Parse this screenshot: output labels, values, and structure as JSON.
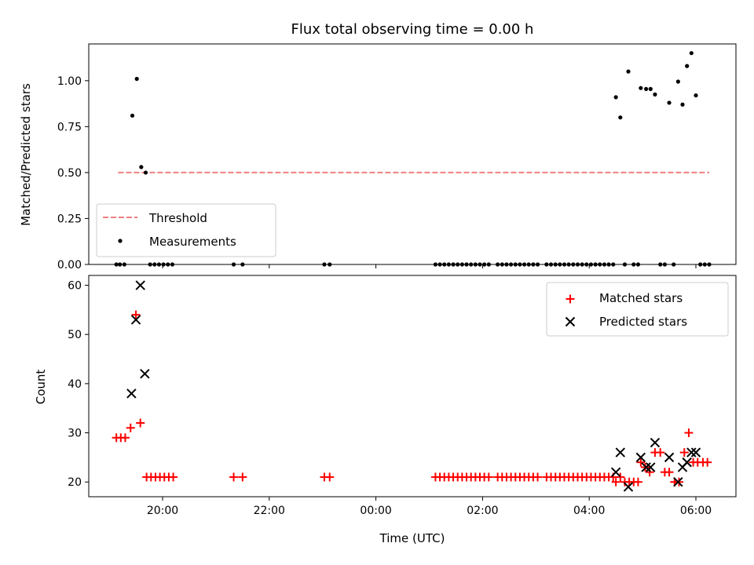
{
  "figure": {
    "title": "Flux total observing time = 0.00 h",
    "xlabel": "Time (UTC)",
    "x_ticks": [
      "20:00",
      "22:00",
      "00:00",
      "02:00",
      "04:00",
      "06:00"
    ]
  },
  "chart_data": [
    {
      "type": "scatter",
      "ylabel": "Matched/Predicted stars",
      "ylim": [
        0,
        1.2
      ],
      "y_ticks": [
        "0.00",
        "0.25",
        "0.50",
        "0.75",
        "1.00"
      ],
      "legend_position": "lower-left",
      "threshold": {
        "name": "Threshold",
        "value": 0.5,
        "x_start": "19:10",
        "x_end": "06:15",
        "color": "#f08080"
      },
      "measurements_name": "Measurements",
      "measurements": [
        {
          "x": "19:08",
          "y": 0
        },
        {
          "x": "19:12",
          "y": 0
        },
        {
          "x": "19:17",
          "y": 0
        },
        {
          "x": "19:26",
          "y": 0.81
        },
        {
          "x": "19:31",
          "y": 1.01
        },
        {
          "x": "19:36",
          "y": 0.53
        },
        {
          "x": "19:41",
          "y": 0.5
        },
        {
          "x": "19:46",
          "y": 0
        },
        {
          "x": "19:51",
          "y": 0
        },
        {
          "x": "19:56",
          "y": 0
        },
        {
          "x": "20:01",
          "y": 0
        },
        {
          "x": "20:06",
          "y": 0
        },
        {
          "x": "20:11",
          "y": 0
        },
        {
          "x": "21:20",
          "y": 0
        },
        {
          "x": "21:30",
          "y": 0
        },
        {
          "x": "23:02",
          "y": 0
        },
        {
          "x": "23:08",
          "y": 0
        },
        {
          "x": "01:07",
          "y": 0
        },
        {
          "x": "01:12",
          "y": 0
        },
        {
          "x": "01:17",
          "y": 0
        },
        {
          "x": "01:22",
          "y": 0
        },
        {
          "x": "01:27",
          "y": 0
        },
        {
          "x": "01:32",
          "y": 0
        },
        {
          "x": "01:37",
          "y": 0
        },
        {
          "x": "01:42",
          "y": 0
        },
        {
          "x": "01:47",
          "y": 0
        },
        {
          "x": "01:52",
          "y": 0
        },
        {
          "x": "01:57",
          "y": 0
        },
        {
          "x": "02:02",
          "y": 0
        },
        {
          "x": "02:07",
          "y": 0
        },
        {
          "x": "02:17",
          "y": 0
        },
        {
          "x": "02:22",
          "y": 0
        },
        {
          "x": "02:27",
          "y": 0
        },
        {
          "x": "02:32",
          "y": 0
        },
        {
          "x": "02:37",
          "y": 0
        },
        {
          "x": "02:42",
          "y": 0
        },
        {
          "x": "02:47",
          "y": 0
        },
        {
          "x": "02:52",
          "y": 0
        },
        {
          "x": "02:57",
          "y": 0
        },
        {
          "x": "03:02",
          "y": 0
        },
        {
          "x": "03:12",
          "y": 0
        },
        {
          "x": "03:17",
          "y": 0
        },
        {
          "x": "03:22",
          "y": 0
        },
        {
          "x": "03:27",
          "y": 0
        },
        {
          "x": "03:32",
          "y": 0
        },
        {
          "x": "03:37",
          "y": 0
        },
        {
          "x": "03:42",
          "y": 0
        },
        {
          "x": "03:47",
          "y": 0
        },
        {
          "x": "03:52",
          "y": 0
        },
        {
          "x": "03:57",
          "y": 0
        },
        {
          "x": "04:02",
          "y": 0
        },
        {
          "x": "04:07",
          "y": 0
        },
        {
          "x": "04:12",
          "y": 0
        },
        {
          "x": "04:17",
          "y": 0
        },
        {
          "x": "04:22",
          "y": 0
        },
        {
          "x": "04:27",
          "y": 0
        },
        {
          "x": "04:30",
          "y": 0.91
        },
        {
          "x": "04:35",
          "y": 0.8
        },
        {
          "x": "04:40",
          "y": 0
        },
        {
          "x": "04:44",
          "y": 1.05
        },
        {
          "x": "04:50",
          "y": 0
        },
        {
          "x": "04:55",
          "y": 0
        },
        {
          "x": "04:58",
          "y": 0.96
        },
        {
          "x": "05:04",
          "y": 0.955
        },
        {
          "x": "05:09",
          "y": 0.955
        },
        {
          "x": "05:14",
          "y": 0.925
        },
        {
          "x": "05:20",
          "y": 0
        },
        {
          "x": "05:25",
          "y": 0
        },
        {
          "x": "05:30",
          "y": 0.88
        },
        {
          "x": "05:35",
          "y": 0
        },
        {
          "x": "05:40",
          "y": 0.995
        },
        {
          "x": "05:45",
          "y": 0.87
        },
        {
          "x": "05:50",
          "y": 1.08
        },
        {
          "x": "05:55",
          "y": 1.15
        },
        {
          "x": "06:00",
          "y": 0.92
        },
        {
          "x": "06:05",
          "y": 0
        },
        {
          "x": "06:10",
          "y": 0
        },
        {
          "x": "06:15",
          "y": 0
        }
      ]
    },
    {
      "type": "scatter",
      "ylabel": "Count",
      "ylim": [
        17,
        62
      ],
      "y_ticks": [
        "20",
        "30",
        "40",
        "50",
        "60"
      ],
      "legend_position": "upper-right",
      "series": [
        {
          "name": "Matched stars",
          "marker": "+",
          "color": "#ff0000",
          "points": [
            {
              "x": "19:08",
              "y": 29
            },
            {
              "x": "19:13",
              "y": 29
            },
            {
              "x": "19:18",
              "y": 29
            },
            {
              "x": "19:24",
              "y": 31
            },
            {
              "x": "19:30",
              "y": 54
            },
            {
              "x": "19:35",
              "y": 32
            },
            {
              "x": "19:42",
              "y": 21
            },
            {
              "x": "19:47",
              "y": 21
            },
            {
              "x": "19:52",
              "y": 21
            },
            {
              "x": "19:57",
              "y": 21
            },
            {
              "x": "20:02",
              "y": 21
            },
            {
              "x": "20:07",
              "y": 21
            },
            {
              "x": "20:12",
              "y": 21
            },
            {
              "x": "21:20",
              "y": 21
            },
            {
              "x": "21:30",
              "y": 21
            },
            {
              "x": "23:02",
              "y": 21
            },
            {
              "x": "23:08",
              "y": 21
            },
            {
              "x": "01:07",
              "y": 21
            },
            {
              "x": "01:12",
              "y": 21
            },
            {
              "x": "01:17",
              "y": 21
            },
            {
              "x": "01:22",
              "y": 21
            },
            {
              "x": "01:27",
              "y": 21
            },
            {
              "x": "01:32",
              "y": 21
            },
            {
              "x": "01:37",
              "y": 21
            },
            {
              "x": "01:42",
              "y": 21
            },
            {
              "x": "01:47",
              "y": 21
            },
            {
              "x": "01:52",
              "y": 21
            },
            {
              "x": "01:57",
              "y": 21
            },
            {
              "x": "02:02",
              "y": 21
            },
            {
              "x": "02:07",
              "y": 21
            },
            {
              "x": "02:17",
              "y": 21
            },
            {
              "x": "02:22",
              "y": 21
            },
            {
              "x": "02:27",
              "y": 21
            },
            {
              "x": "02:32",
              "y": 21
            },
            {
              "x": "02:37",
              "y": 21
            },
            {
              "x": "02:42",
              "y": 21
            },
            {
              "x": "02:47",
              "y": 21
            },
            {
              "x": "02:52",
              "y": 21
            },
            {
              "x": "02:57",
              "y": 21
            },
            {
              "x": "03:02",
              "y": 21
            },
            {
              "x": "03:12",
              "y": 21
            },
            {
              "x": "03:17",
              "y": 21
            },
            {
              "x": "03:22",
              "y": 21
            },
            {
              "x": "03:27",
              "y": 21
            },
            {
              "x": "03:32",
              "y": 21
            },
            {
              "x": "03:37",
              "y": 21
            },
            {
              "x": "03:42",
              "y": 21
            },
            {
              "x": "03:47",
              "y": 21
            },
            {
              "x": "03:52",
              "y": 21
            },
            {
              "x": "03:57",
              "y": 21
            },
            {
              "x": "04:02",
              "y": 21
            },
            {
              "x": "04:07",
              "y": 21
            },
            {
              "x": "04:12",
              "y": 21
            },
            {
              "x": "04:17",
              "y": 21
            },
            {
              "x": "04:22",
              "y": 21
            },
            {
              "x": "04:27",
              "y": 21
            },
            {
              "x": "04:30",
              "y": 20
            },
            {
              "x": "04:35",
              "y": 21
            },
            {
              "x": "04:40",
              "y": 20
            },
            {
              "x": "04:45",
              "y": 20
            },
            {
              "x": "04:50",
              "y": 20
            },
            {
              "x": "04:55",
              "y": 20
            },
            {
              "x": "04:58",
              "y": 24
            },
            {
              "x": "05:03",
              "y": 23
            },
            {
              "x": "05:08",
              "y": 22
            },
            {
              "x": "05:14",
              "y": 26
            },
            {
              "x": "05:20",
              "y": 26
            },
            {
              "x": "05:25",
              "y": 22
            },
            {
              "x": "05:30",
              "y": 22
            },
            {
              "x": "05:36",
              "y": 20
            },
            {
              "x": "05:41",
              "y": 20
            },
            {
              "x": "05:47",
              "y": 26
            },
            {
              "x": "05:52",
              "y": 30
            },
            {
              "x": "05:57",
              "y": 24
            },
            {
              "x": "06:02",
              "y": 24
            },
            {
              "x": "06:08",
              "y": 24
            },
            {
              "x": "06:13",
              "y": 24
            }
          ]
        },
        {
          "name": "Predicted stars",
          "marker": "x",
          "color": "#000000",
          "points": [
            {
              "x": "19:25",
              "y": 38
            },
            {
              "x": "19:30",
              "y": 53
            },
            {
              "x": "19:35",
              "y": 60
            },
            {
              "x": "19:40",
              "y": 42
            },
            {
              "x": "04:30",
              "y": 22
            },
            {
              "x": "04:35",
              "y": 26
            },
            {
              "x": "04:44",
              "y": 19
            },
            {
              "x": "04:58",
              "y": 25
            },
            {
              "x": "05:04",
              "y": 23
            },
            {
              "x": "05:09",
              "y": 23
            },
            {
              "x": "05:14",
              "y": 28
            },
            {
              "x": "05:30",
              "y": 25
            },
            {
              "x": "05:40",
              "y": 20
            },
            {
              "x": "05:45",
              "y": 23
            },
            {
              "x": "05:50",
              "y": 24
            },
            {
              "x": "05:55",
              "y": 26
            },
            {
              "x": "06:00",
              "y": 26
            }
          ]
        }
      ]
    }
  ]
}
